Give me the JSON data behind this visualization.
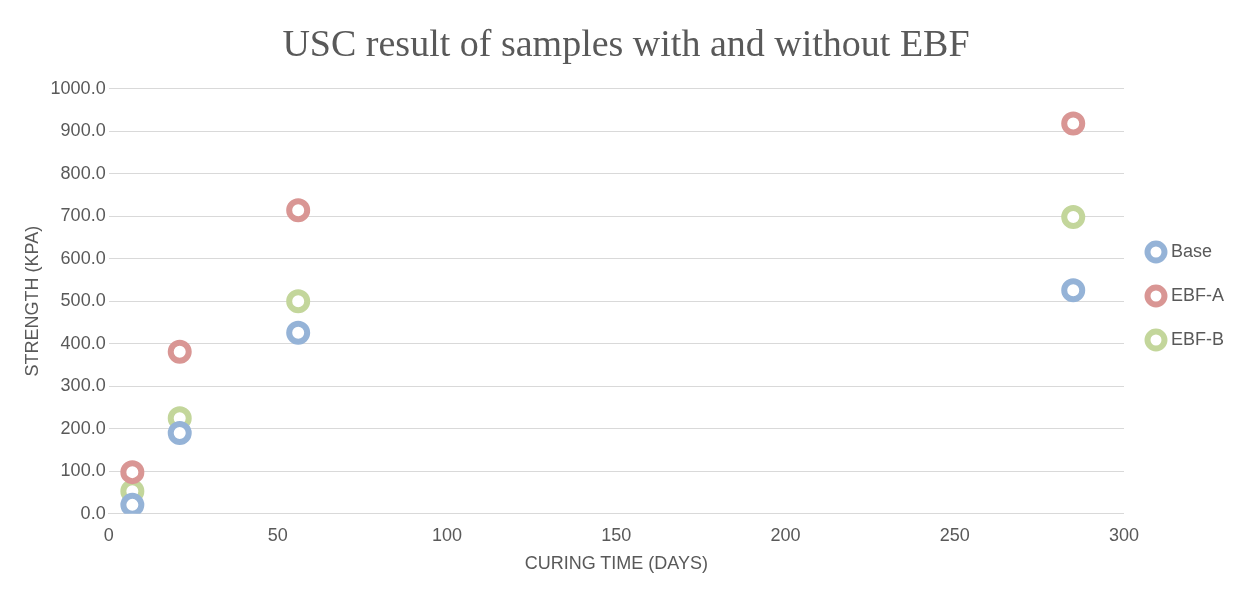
{
  "chart_data": {
    "type": "scatter",
    "title": "USC result of samples with and without EBF",
    "xlabel": "CURING TIME (DAYS)",
    "ylabel": "STRENGTH (KPA)",
    "series": [
      {
        "name": "Base",
        "color": "#95b3d7",
        "x": [
          7,
          21,
          56,
          285
        ],
        "values": [
          21,
          190,
          426,
          526
        ]
      },
      {
        "name": "EBF-A",
        "color": "#d99694",
        "x": [
          7,
          21,
          56,
          285
        ],
        "values": [
          98,
          381,
          714,
          918
        ]
      },
      {
        "name": "EBF-B",
        "color": "#c3d69b",
        "x": [
          7,
          21,
          56,
          285
        ],
        "values": [
          53,
          225,
          500,
          698
        ]
      }
    ],
    "xlim": [
      0,
      300
    ],
    "xticks": [
      0,
      50,
      100,
      150,
      200,
      250,
      300
    ],
    "ylim": [
      0,
      1000
    ],
    "yticks": [
      {
        "value": 0,
        "label": "0.0"
      },
      {
        "value": 100,
        "label": "100.0"
      },
      {
        "value": 200,
        "label": "200.0"
      },
      {
        "value": 300,
        "label": "300.0"
      },
      {
        "value": 400,
        "label": "400.0"
      },
      {
        "value": 500,
        "label": "500.0"
      },
      {
        "value": 600,
        "label": "600.0"
      },
      {
        "value": 700,
        "label": "700.0"
      },
      {
        "value": 800,
        "label": "800.0"
      },
      {
        "value": 900,
        "label": "900.0"
      },
      {
        "value": 1000,
        "label": "1000.0"
      }
    ],
    "grid": "y",
    "legend": "right",
    "marker": "circle"
  }
}
